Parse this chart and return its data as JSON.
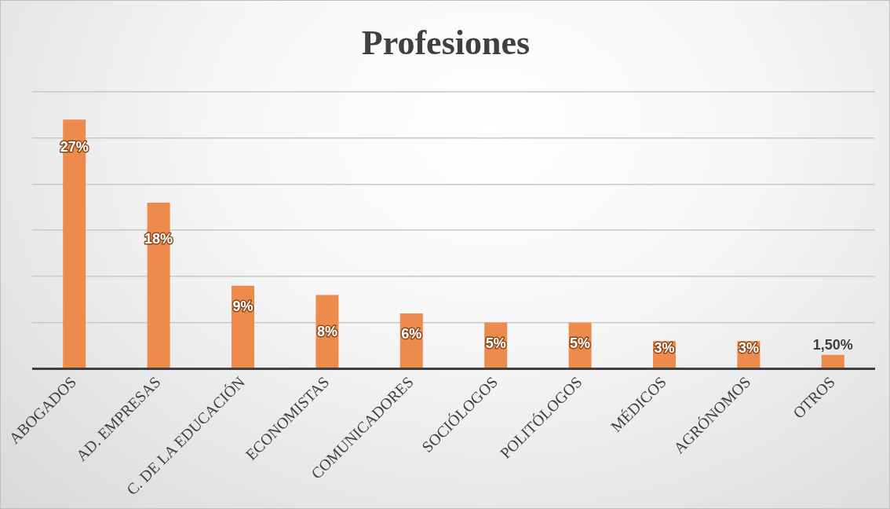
{
  "chart_data": {
    "type": "bar",
    "title": "Profesiones",
    "categories": [
      "ABOGADOS",
      "AD. EMPRESAS",
      "C. DE LA EDUCACIÓN",
      "ECONOMISTAS",
      "COMUNICADORES",
      "SOCIÓLOGOS",
      "POLITÓLOGOS",
      "MÉDICOS",
      "AGRÓNOMOS",
      "OTROS"
    ],
    "values": [
      27,
      18,
      9,
      8,
      6,
      5,
      5,
      3,
      3,
      1.5
    ],
    "value_labels": [
      "27%",
      "18%",
      "9%",
      "8%",
      "6%",
      "5%",
      "5%",
      "3%",
      "3%",
      "1,50%"
    ],
    "color": "#ed8b4c",
    "ylim": [
      0,
      30
    ],
    "yticks": [
      {
        "value": 0,
        "label": null
      },
      {
        "value": 5,
        "label": null
      },
      {
        "value": 10,
        "label": null
      },
      {
        "value": 15,
        "label": null
      },
      {
        "value": 20,
        "label": null
      },
      {
        "value": 25,
        "label": null
      },
      {
        "value": 30,
        "label": null
      }
    ],
    "tick_labels": "x",
    "grid": "y"
  }
}
